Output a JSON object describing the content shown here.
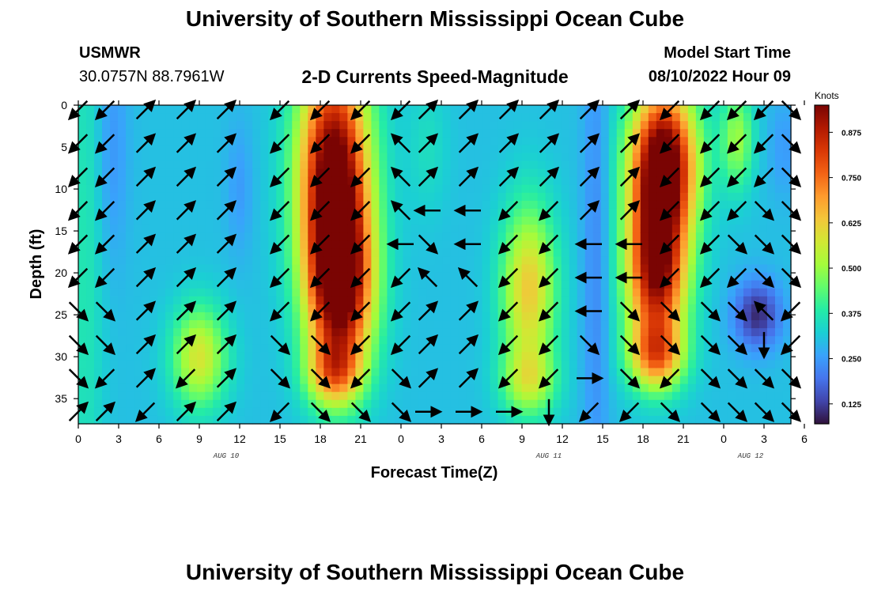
{
  "header": {
    "title": "University of Southern Mississippi Ocean Cube",
    "station": "USMWR",
    "coordinates": "30.0757N  88.7961W",
    "subtitle": "2-D Currents Speed-Magnitude",
    "model_start_label": "Model Start Time",
    "model_start_value": "08/10/2022 Hour 09"
  },
  "footer": {
    "title": "University of Southern Mississippi Ocean Cube"
  },
  "chart_data": {
    "type": "heatmap",
    "title": "2-D Currents Speed-Magnitude",
    "xlabel": "Forecast Time(Z)",
    "ylabel": "Depth (ft)",
    "colorbar_label": "Knots",
    "colorbar_ticks": [
      0.125,
      0.25,
      0.375,
      0.5,
      0.625,
      0.75,
      0.875
    ],
    "colorbar_range": [
      0.07,
      0.95
    ],
    "colormap": [
      "#30123b",
      "#4145ab",
      "#4675ed",
      "#39a2fc",
      "#1bcfd4",
      "#24eca6",
      "#61fc6c",
      "#a4fc3b",
      "#d1e834",
      "#f3c63a",
      "#fe9b2d",
      "#f36315",
      "#d93806",
      "#b11901",
      "#7a0403"
    ],
    "x_range_hours": [
      0,
      53
    ],
    "x_tick_labels": [
      "0",
      "3",
      "6",
      "9",
      "12",
      "15",
      "18",
      "21",
      "0",
      "3",
      "6",
      "9",
      "12",
      "15",
      "18",
      "21",
      "0",
      "3",
      "6"
    ],
    "date_labels": [
      {
        "text": "AUG 10",
        "hour": 11
      },
      {
        "text": "AUG 11",
        "hour": 35
      },
      {
        "text": "AUG 12",
        "hour": 50
      }
    ],
    "y_range_ft": [
      0,
      38
    ],
    "y_ticks": [
      0,
      5,
      10,
      15,
      20,
      25,
      30,
      35
    ],
    "speed_ridges": [
      {
        "t": 0.5,
        "d": 18,
        "a": 0.07,
        "w": 1.4,
        "h": 40
      },
      {
        "t": 2.5,
        "d": 5,
        "a": -0.06,
        "w": 1.2,
        "h": 14
      },
      {
        "t": 9.0,
        "d": 30,
        "a": 0.28,
        "w": 2.0,
        "h": 6
      },
      {
        "t": 12.0,
        "d": 10,
        "a": -0.05,
        "w": 1.0,
        "h": 8
      },
      {
        "t": 19.0,
        "d": 8,
        "a": 0.7,
        "w": 2.6,
        "h": 14
      },
      {
        "t": 19.5,
        "d": 22,
        "a": 0.6,
        "w": 2.4,
        "h": 10
      },
      {
        "t": 19.0,
        "d": 32,
        "a": 0.3,
        "w": 2.0,
        "h": 4
      },
      {
        "t": 26.0,
        "d": 5,
        "a": 0.05,
        "w": 1.5,
        "h": 8
      },
      {
        "t": 33.5,
        "d": 22,
        "a": 0.33,
        "w": 2.0,
        "h": 10
      },
      {
        "t": 33.5,
        "d": 33,
        "a": 0.2,
        "w": 2.0,
        "h": 4
      },
      {
        "t": 38.5,
        "d": 18,
        "a": -0.08,
        "w": 1.0,
        "h": 30
      },
      {
        "t": 43.5,
        "d": 7,
        "a": 0.75,
        "w": 2.4,
        "h": 9
      },
      {
        "t": 43.0,
        "d": 20,
        "a": 0.62,
        "w": 2.2,
        "h": 9
      },
      {
        "t": 43.0,
        "d": 30,
        "a": 0.35,
        "w": 2.0,
        "h": 4
      },
      {
        "t": 49.0,
        "d": 4,
        "a": 0.2,
        "w": 1.2,
        "h": 6
      },
      {
        "t": 50.5,
        "d": 25,
        "a": -0.2,
        "w": 1.7,
        "h": 4
      },
      {
        "t": 52.5,
        "d": 5,
        "a": -0.05,
        "w": 1.2,
        "h": 6
      }
    ],
    "vector_times_hours": [
      0,
      2,
      5,
      8,
      11,
      15,
      18,
      21,
      24,
      26,
      29,
      32,
      35,
      38,
      41,
      44,
      47,
      49,
      51,
      53
    ],
    "vector_depths_ft": [
      0,
      4,
      8,
      12,
      16,
      20,
      24,
      28,
      32,
      36
    ],
    "vector_directions_deg": [
      [
        135,
        135,
        315,
        315,
        315,
        135,
        135,
        135,
        135,
        315,
        315,
        315,
        315,
        315,
        315,
        135,
        135,
        135,
        135,
        45
      ],
      [
        135,
        135,
        315,
        315,
        315,
        135,
        135,
        135,
        225,
        315,
        315,
        315,
        315,
        315,
        315,
        135,
        135,
        135,
        135,
        45
      ],
      [
        135,
        135,
        315,
        315,
        315,
        135,
        135,
        135,
        225,
        315,
        315,
        315,
        315,
        315,
        315,
        135,
        135,
        135,
        135,
        45
      ],
      [
        135,
        135,
        315,
        315,
        315,
        135,
        135,
        135,
        225,
        180,
        180,
        135,
        135,
        315,
        315,
        135,
        135,
        135,
        45,
        45
      ],
      [
        135,
        135,
        315,
        315,
        315,
        135,
        135,
        135,
        180,
        45,
        180,
        135,
        135,
        180,
        180,
        135,
        135,
        45,
        45,
        45
      ],
      [
        135,
        135,
        315,
        315,
        315,
        135,
        135,
        135,
        135,
        225,
        225,
        135,
        135,
        180,
        180,
        135,
        135,
        135,
        45,
        45
      ],
      [
        45,
        45,
        315,
        315,
        315,
        135,
        135,
        135,
        135,
        315,
        315,
        135,
        135,
        180,
        45,
        45,
        45,
        45,
        225,
        135
      ],
      [
        45,
        45,
        315,
        315,
        315,
        45,
        45,
        135,
        135,
        315,
        315,
        135,
        135,
        45,
        45,
        45,
        45,
        45,
        90,
        135
      ],
      [
        45,
        135,
        315,
        135,
        315,
        45,
        45,
        135,
        45,
        315,
        315,
        135,
        135,
        0,
        45,
        135,
        45,
        45,
        45,
        45
      ],
      [
        315,
        315,
        135,
        315,
        315,
        135,
        45,
        45,
        45,
        0,
        0,
        0,
        90,
        135,
        135,
        45,
        45,
        45,
        45,
        45
      ]
    ]
  }
}
